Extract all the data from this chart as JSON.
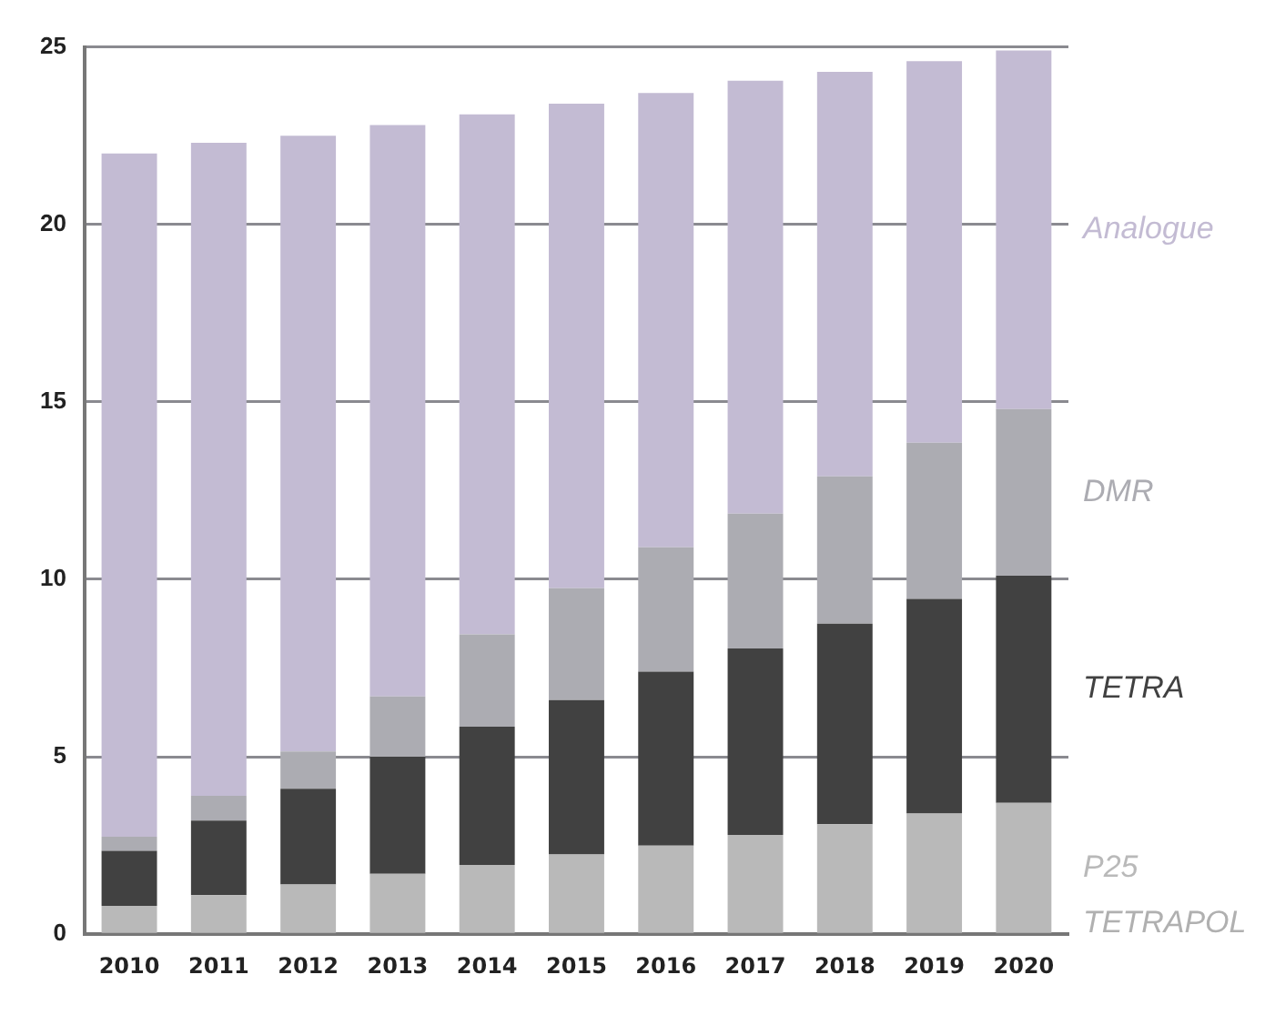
{
  "chart_data": {
    "type": "bar",
    "stacked": true,
    "categories": [
      "2010",
      "2011",
      "2012",
      "2013",
      "2014",
      "2015",
      "2016",
      "2017",
      "2018",
      "2019",
      "2020"
    ],
    "series": [
      {
        "name": "P25",
        "color": "#b9b9b9",
        "values": [
          0.8,
          1.1,
          1.4,
          1.7,
          1.95,
          2.25,
          2.5,
          2.8,
          3.1,
          3.4,
          3.7
        ]
      },
      {
        "name": "TETRA",
        "color": "#414141",
        "values": [
          1.55,
          2.1,
          2.7,
          3.3,
          3.9,
          4.35,
          4.9,
          5.25,
          5.65,
          6.05,
          6.4
        ]
      },
      {
        "name": "DMR",
        "color": "#acacb2",
        "values": [
          0.4,
          0.7,
          1.05,
          1.7,
          2.6,
          3.15,
          3.5,
          3.8,
          4.15,
          4.4,
          4.7
        ]
      },
      {
        "name": "Analogue",
        "color": "#c3bbd3",
        "values": [
          19.25,
          18.4,
          17.35,
          16.1,
          14.65,
          13.65,
          12.8,
          12.2,
          11.4,
          10.75,
          10.1
        ]
      }
    ],
    "annotations": [
      "TETRAPOL"
    ],
    "ylim": [
      0,
      25
    ],
    "yticks": [
      0,
      5,
      10,
      15,
      20,
      25
    ],
    "grid": "y",
    "legend": false
  }
}
